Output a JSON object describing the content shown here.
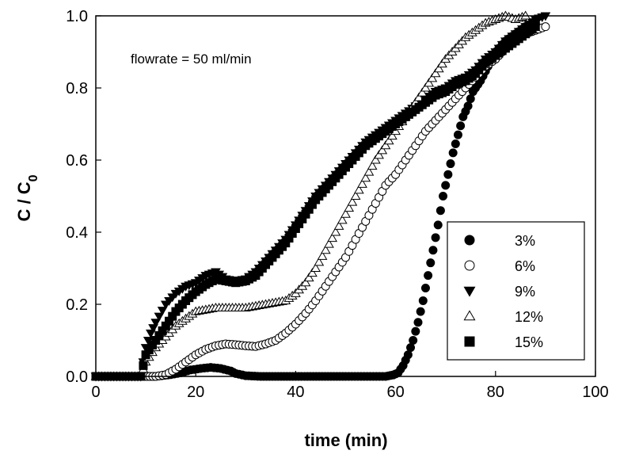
{
  "chart_data": {
    "type": "scatter",
    "title": "",
    "xlabel": "time (min)",
    "ylabel_main": "C / C",
    "ylabel_subscript": "0",
    "xlim": [
      0,
      100
    ],
    "ylim": [
      0,
      1
    ],
    "xticks": [
      "0",
      "20",
      "40",
      "60",
      "80",
      "100"
    ],
    "yticks": [
      "0.0",
      "0.2",
      "0.4",
      "0.6",
      "0.8",
      "1.0"
    ],
    "grid": false,
    "legend_position": "lower-right",
    "annotation": "flowrate = 50 ml/min",
    "series": [
      {
        "name": "3%",
        "marker": "filled-circle",
        "points": [
          [
            0,
            0
          ],
          [
            3,
            0
          ],
          [
            6,
            0
          ],
          [
            9,
            0
          ],
          [
            12,
            0
          ],
          [
            15,
            0.005
          ],
          [
            17,
            0.01
          ],
          [
            19,
            0.018
          ],
          [
            21,
            0.022
          ],
          [
            23,
            0.025
          ],
          [
            25,
            0.022
          ],
          [
            27,
            0.015
          ],
          [
            28,
            0.008
          ],
          [
            30,
            0.002
          ],
          [
            33,
            0
          ],
          [
            40,
            0
          ],
          [
            50,
            0
          ],
          [
            58,
            0
          ],
          [
            59.5,
            0.004
          ],
          [
            60.5,
            0.01
          ],
          [
            61.5,
            0.03
          ],
          [
            62.5,
            0.06
          ],
          [
            63.5,
            0.1
          ],
          [
            64.5,
            0.15
          ],
          [
            65.5,
            0.21
          ],
          [
            66.5,
            0.28
          ],
          [
            67.5,
            0.35
          ],
          [
            68.5,
            0.42
          ],
          [
            69.5,
            0.5
          ],
          [
            70.5,
            0.56
          ],
          [
            71.5,
            0.62
          ],
          [
            72.5,
            0.67
          ],
          [
            73.5,
            0.72
          ],
          [
            74.5,
            0.75
          ],
          [
            75.5,
            0.79
          ],
          [
            77,
            0.82
          ],
          [
            78.5,
            0.86
          ],
          [
            80,
            0.9
          ],
          [
            82,
            0.93
          ],
          [
            84,
            0.95
          ],
          [
            86,
            0.97
          ],
          [
            88,
            0.98
          ]
        ]
      },
      {
        "name": "6%",
        "marker": "open-circle",
        "points": [
          [
            0,
            0
          ],
          [
            3,
            0
          ],
          [
            6,
            0
          ],
          [
            9,
            0
          ],
          [
            12,
            0
          ],
          [
            14,
            0.005
          ],
          [
            16,
            0.02
          ],
          [
            18,
            0.04
          ],
          [
            20,
            0.06
          ],
          [
            22,
            0.075
          ],
          [
            24,
            0.085
          ],
          [
            26,
            0.09
          ],
          [
            28,
            0.088
          ],
          [
            30,
            0.085
          ],
          [
            32,
            0.083
          ],
          [
            34,
            0.09
          ],
          [
            36,
            0.1
          ],
          [
            38,
            0.12
          ],
          [
            40,
            0.145
          ],
          [
            42,
            0.175
          ],
          [
            44,
            0.21
          ],
          [
            46,
            0.25
          ],
          [
            48,
            0.29
          ],
          [
            50,
            0.33
          ],
          [
            52,
            0.38
          ],
          [
            54,
            0.43
          ],
          [
            56,
            0.48
          ],
          [
            58,
            0.53
          ],
          [
            60,
            0.56
          ],
          [
            62,
            0.6
          ],
          [
            64,
            0.64
          ],
          [
            66,
            0.68
          ],
          [
            68,
            0.71
          ],
          [
            70,
            0.74
          ],
          [
            72,
            0.77
          ],
          [
            74,
            0.8
          ],
          [
            76,
            0.83
          ],
          [
            78,
            0.86
          ],
          [
            80,
            0.88
          ],
          [
            82,
            0.91
          ],
          [
            84,
            0.93
          ],
          [
            86,
            0.95
          ],
          [
            88,
            0.96
          ],
          [
            90,
            0.97
          ]
        ]
      },
      {
        "name": "9%",
        "marker": "filled-triangle-down",
        "points": [
          [
            0,
            0
          ],
          [
            3,
            0
          ],
          [
            6,
            0
          ],
          [
            9,
            0
          ],
          [
            10,
            0.08
          ],
          [
            11,
            0.12
          ],
          [
            12,
            0.15
          ],
          [
            14,
            0.2
          ],
          [
            16,
            0.23
          ],
          [
            18,
            0.25
          ],
          [
            20,
            0.26
          ],
          [
            22,
            0.28
          ],
          [
            24,
            0.29
          ],
          [
            26,
            0.27
          ],
          [
            28,
            0.265
          ],
          [
            30,
            0.27
          ],
          [
            32,
            0.29
          ],
          [
            34,
            0.32
          ],
          [
            36,
            0.35
          ],
          [
            38,
            0.38
          ],
          [
            40,
            0.42
          ],
          [
            42,
            0.46
          ],
          [
            44,
            0.5
          ],
          [
            46,
            0.53
          ],
          [
            48,
            0.56
          ],
          [
            50,
            0.59
          ],
          [
            52,
            0.62
          ],
          [
            54,
            0.65
          ],
          [
            56,
            0.67
          ],
          [
            58,
            0.69
          ],
          [
            60,
            0.71
          ],
          [
            62,
            0.73
          ],
          [
            64,
            0.75
          ],
          [
            66,
            0.77
          ],
          [
            68,
            0.79
          ],
          [
            70,
            0.8
          ],
          [
            72,
            0.82
          ],
          [
            74,
            0.83
          ],
          [
            76,
            0.85
          ],
          [
            78,
            0.88
          ],
          [
            80,
            0.9
          ],
          [
            82,
            0.93
          ],
          [
            84,
            0.95
          ],
          [
            86,
            0.97
          ],
          [
            88,
            0.99
          ],
          [
            90,
            1.0
          ]
        ]
      },
      {
        "name": "12%",
        "marker": "open-triangle-up",
        "points": [
          [
            0,
            0
          ],
          [
            3,
            0
          ],
          [
            6,
            0
          ],
          [
            9,
            0
          ],
          [
            10,
            0.04
          ],
          [
            12,
            0.08
          ],
          [
            14,
            0.11
          ],
          [
            16,
            0.14
          ],
          [
            18,
            0.16
          ],
          [
            20,
            0.18
          ],
          [
            22,
            0.185
          ],
          [
            24,
            0.19
          ],
          [
            26,
            0.19
          ],
          [
            28,
            0.19
          ],
          [
            30,
            0.19
          ],
          [
            32,
            0.195
          ],
          [
            34,
            0.2
          ],
          [
            36,
            0.205
          ],
          [
            38,
            0.21
          ],
          [
            40,
            0.23
          ],
          [
            42,
            0.26
          ],
          [
            44,
            0.3
          ],
          [
            46,
            0.35
          ],
          [
            48,
            0.4
          ],
          [
            50,
            0.45
          ],
          [
            52,
            0.5
          ],
          [
            54,
            0.55
          ],
          [
            56,
            0.6
          ],
          [
            58,
            0.64
          ],
          [
            60,
            0.68
          ],
          [
            62,
            0.72
          ],
          [
            64,
            0.76
          ],
          [
            66,
            0.8
          ],
          [
            68,
            0.84
          ],
          [
            70,
            0.88
          ],
          [
            72,
            0.91
          ],
          [
            74,
            0.94
          ],
          [
            76,
            0.96
          ],
          [
            78,
            0.98
          ],
          [
            80,
            0.99
          ],
          [
            82,
            1.0
          ],
          [
            84,
            0.99
          ],
          [
            86,
            1.0
          ]
        ]
      },
      {
        "name": "15%",
        "marker": "filled-square",
        "points": [
          [
            0,
            0
          ],
          [
            3,
            0
          ],
          [
            6,
            0
          ],
          [
            9,
            0
          ],
          [
            10,
            0.06
          ],
          [
            12,
            0.1
          ],
          [
            14,
            0.14
          ],
          [
            16,
            0.18
          ],
          [
            18,
            0.21
          ],
          [
            20,
            0.235
          ],
          [
            22,
            0.255
          ],
          [
            24,
            0.27
          ],
          [
            26,
            0.265
          ],
          [
            28,
            0.26
          ],
          [
            30,
            0.265
          ],
          [
            32,
            0.28
          ],
          [
            34,
            0.31
          ],
          [
            36,
            0.34
          ],
          [
            38,
            0.37
          ],
          [
            40,
            0.41
          ],
          [
            42,
            0.45
          ],
          [
            44,
            0.49
          ],
          [
            46,
            0.52
          ],
          [
            48,
            0.55
          ],
          [
            50,
            0.58
          ],
          [
            52,
            0.61
          ],
          [
            54,
            0.64
          ],
          [
            56,
            0.66
          ],
          [
            58,
            0.68
          ],
          [
            60,
            0.7
          ],
          [
            62,
            0.72
          ],
          [
            64,
            0.74
          ],
          [
            66,
            0.76
          ],
          [
            68,
            0.78
          ],
          [
            70,
            0.79
          ],
          [
            72,
            0.81
          ],
          [
            74,
            0.82
          ],
          [
            76,
            0.84
          ],
          [
            78,
            0.87
          ],
          [
            80,
            0.89
          ],
          [
            82,
            0.91
          ],
          [
            84,
            0.93
          ],
          [
            86,
            0.95
          ],
          [
            88,
            0.97
          ]
        ]
      }
    ]
  }
}
